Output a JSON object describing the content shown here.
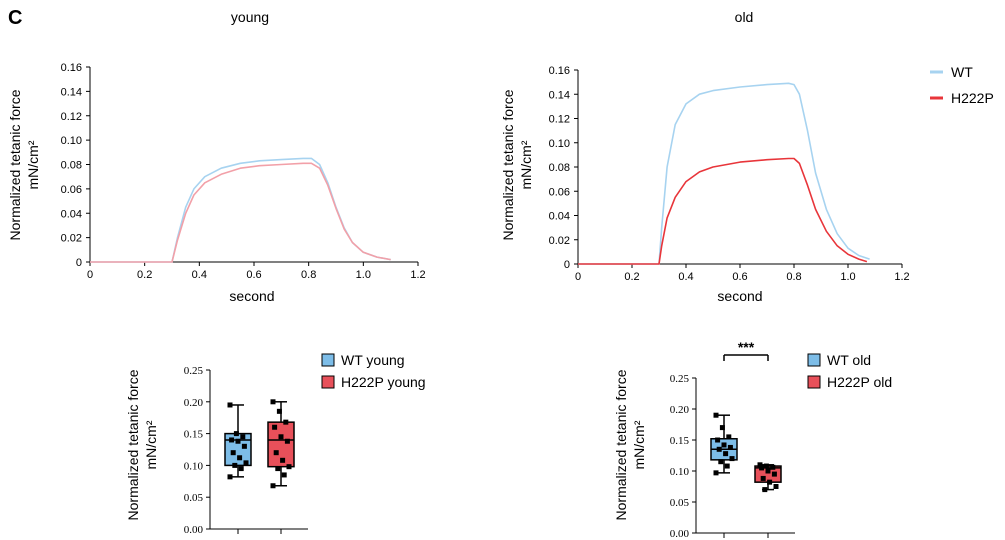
{
  "panel_letter": "C",
  "legend": {
    "items": [
      {
        "name": "WT",
        "color": "#a7d3f0"
      },
      {
        "name": "H222P",
        "color": "#e8353a"
      }
    ]
  },
  "chart_data": [
    {
      "type": "line",
      "title": "young",
      "xlabel": "second",
      "ylabel": "Normalized tetanic force",
      "ylabel_units": "mN/cm²",
      "xlim": [
        0,
        1.2
      ],
      "ylim": [
        0,
        0.16
      ],
      "xticks": [
        "0",
        "0.2",
        "0.4",
        "0.6",
        "0.8",
        "1.0",
        "1.2"
      ],
      "yticks": [
        "0",
        "0.02",
        "0.04",
        "0.06",
        "0.08",
        "0.10",
        "0.12",
        "0.14",
        "0.16"
      ],
      "series": [
        {
          "name": "WT",
          "color": "#a7d3f0",
          "x": [
            0,
            0.3,
            0.32,
            0.35,
            0.38,
            0.42,
            0.48,
            0.55,
            0.62,
            0.7,
            0.78,
            0.81,
            0.84,
            0.87,
            0.9,
            0.93,
            0.96,
            1.0,
            1.05,
            1.1
          ],
          "y": [
            0,
            0,
            0.02,
            0.045,
            0.06,
            0.07,
            0.077,
            0.081,
            0.083,
            0.084,
            0.085,
            0.085,
            0.08,
            0.065,
            0.045,
            0.028,
            0.016,
            0.008,
            0.004,
            0.002
          ]
        },
        {
          "name": "H222P",
          "color": "#f2a0a8",
          "x": [
            0,
            0.3,
            0.32,
            0.35,
            0.38,
            0.42,
            0.48,
            0.55,
            0.62,
            0.7,
            0.78,
            0.81,
            0.84,
            0.87,
            0.9,
            0.93,
            0.96,
            1.0,
            1.05,
            1.1
          ],
          "y": [
            0,
            0,
            0.018,
            0.04,
            0.055,
            0.065,
            0.072,
            0.077,
            0.079,
            0.08,
            0.081,
            0.081,
            0.077,
            0.063,
            0.044,
            0.027,
            0.016,
            0.008,
            0.004,
            0.002
          ]
        }
      ]
    },
    {
      "type": "line",
      "title": "old",
      "xlabel": "second",
      "ylabel": "Normalized tetanic force",
      "ylabel_units": "mN/cm²",
      "xlim": [
        0,
        1.2
      ],
      "ylim": [
        0,
        0.16
      ],
      "xticks": [
        "0",
        "0.2",
        "0.4",
        "0.6",
        "0.8",
        "1.0",
        "1.2"
      ],
      "yticks": [
        "0",
        "0.02",
        "0.04",
        "0.06",
        "0.08",
        "0.10",
        "0.12",
        "0.14",
        "0.16"
      ],
      "series": [
        {
          "name": "WT",
          "color": "#a7d3f0",
          "x": [
            0,
            0.3,
            0.31,
            0.33,
            0.36,
            0.4,
            0.45,
            0.5,
            0.6,
            0.7,
            0.78,
            0.8,
            0.82,
            0.85,
            0.88,
            0.92,
            0.96,
            1.0,
            1.04,
            1.08
          ],
          "y": [
            0,
            0,
            0.03,
            0.08,
            0.115,
            0.132,
            0.14,
            0.143,
            0.146,
            0.148,
            0.149,
            0.148,
            0.14,
            0.11,
            0.075,
            0.045,
            0.025,
            0.013,
            0.007,
            0.004
          ]
        },
        {
          "name": "H222P",
          "color": "#e8353a",
          "x": [
            0,
            0.3,
            0.31,
            0.33,
            0.36,
            0.4,
            0.45,
            0.5,
            0.6,
            0.7,
            0.78,
            0.8,
            0.82,
            0.85,
            0.88,
            0.92,
            0.96,
            1.0,
            1.04,
            1.07
          ],
          "y": [
            0,
            0,
            0.015,
            0.038,
            0.055,
            0.068,
            0.076,
            0.08,
            0.084,
            0.086,
            0.087,
            0.087,
            0.083,
            0.065,
            0.045,
            0.027,
            0.015,
            0.008,
            0.004,
            0.002
          ]
        }
      ]
    },
    {
      "type": "box",
      "ylabel": "Normalized tetanic force",
      "ylabel_units": "mN/cm²",
      "ylim": [
        0,
        0.25
      ],
      "yticks": [
        "0.00",
        "0.05",
        "0.10",
        "0.15",
        "0.20",
        "0.25"
      ],
      "legend": [
        "WT young",
        "H222P young"
      ],
      "boxes": [
        {
          "name": "WT young",
          "color": "#7dbde8",
          "min": 0.082,
          "q1": 0.1,
          "median": 0.14,
          "q3": 0.15,
          "max": 0.195,
          "points": [
            0.195,
            0.15,
            0.145,
            0.14,
            0.138,
            0.13,
            0.12,
            0.112,
            0.104,
            0.1,
            0.095,
            0.082
          ]
        },
        {
          "name": "H222P young",
          "color": "#e8505a",
          "min": 0.068,
          "q1": 0.098,
          "median": 0.14,
          "q3": 0.168,
          "max": 0.2,
          "points": [
            0.2,
            0.185,
            0.168,
            0.16,
            0.145,
            0.138,
            0.12,
            0.108,
            0.098,
            0.095,
            0.085,
            0.068
          ]
        }
      ]
    },
    {
      "type": "box",
      "ylabel": "Normalized tetanic force",
      "ylabel_units": "mN/cm²",
      "ylim": [
        0,
        0.25
      ],
      "yticks": [
        "0.00",
        "0.05",
        "0.10",
        "0.15",
        "0.20",
        "0.25"
      ],
      "legend": [
        "WT old",
        "H222P old"
      ],
      "significance": "***",
      "boxes": [
        {
          "name": "WT old",
          "color": "#7dbde8",
          "min": 0.097,
          "q1": 0.118,
          "median": 0.135,
          "q3": 0.152,
          "max": 0.19,
          "points": [
            0.19,
            0.17,
            0.155,
            0.15,
            0.142,
            0.138,
            0.135,
            0.128,
            0.12,
            0.115,
            0.108,
            0.097
          ]
        },
        {
          "name": "H222P old",
          "color": "#e8505a",
          "min": 0.07,
          "q1": 0.082,
          "median": 0.105,
          "q3": 0.108,
          "max": 0.11,
          "points": [
            0.11,
            0.108,
            0.106,
            0.105,
            0.1,
            0.095,
            0.088,
            0.082,
            0.075,
            0.07
          ]
        }
      ]
    }
  ]
}
